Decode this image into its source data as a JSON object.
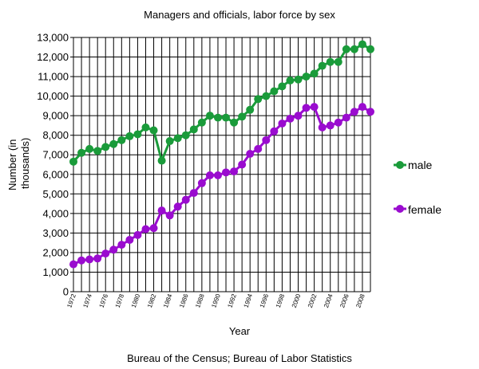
{
  "chart_data": {
    "type": "line",
    "title": "Managers and officials, labor force by sex",
    "xlabel": "Year",
    "ylabel": "Number (in thousands)",
    "ylabel_lines": [
      "Number (in",
      "thousands)"
    ],
    "source": "Bureau of the Census; Bureau of Labor Statistics",
    "xlim": [
      1972,
      2009
    ],
    "ylim": [
      0,
      13000
    ],
    "y_ticks": [
      0,
      1000,
      2000,
      3000,
      4000,
      5000,
      6000,
      7000,
      8000,
      9000,
      10000,
      11000,
      12000,
      13000
    ],
    "y_tick_labels": [
      "0",
      "1,000",
      "2,000",
      "3,000",
      "4,000",
      "5,000",
      "6,000",
      "7,000",
      "8,000",
      "9,000",
      "10,000",
      "11,000",
      "12,000",
      "13,000"
    ],
    "x_tick_labels": [
      "1972",
      "1974",
      "1976",
      "1978",
      "1980",
      "1982",
      "1984",
      "1986",
      "1988",
      "1990",
      "1992",
      "1994",
      "1996",
      "1998",
      "2000",
      "2002",
      "2004",
      "2006",
      "2008"
    ],
    "grid": true,
    "x": [
      1972,
      1973,
      1974,
      1975,
      1976,
      1977,
      1978,
      1979,
      1980,
      1981,
      1982,
      1983,
      1984,
      1985,
      1986,
      1987,
      1988,
      1989,
      1990,
      1991,
      1992,
      1993,
      1994,
      1995,
      1996,
      1997,
      1998,
      1999,
      2000,
      2001,
      2002,
      2003,
      2004,
      2005,
      2006,
      2007,
      2008,
      2009
    ],
    "series": [
      {
        "name": "male",
        "color": "#1a9b3a",
        "values": [
          6650,
          7100,
          7300,
          7200,
          7400,
          7550,
          7750,
          7950,
          8050,
          8400,
          8250,
          6700,
          7700,
          7850,
          8000,
          8300,
          8650,
          9000,
          8900,
          8900,
          8650,
          8950,
          9300,
          9850,
          10000,
          10250,
          10500,
          10800,
          10850,
          11000,
          11150,
          11550,
          11750,
          11750,
          12400,
          12400,
          12650,
          12400
        ]
      },
      {
        "name": "female",
        "color": "#9a0ccf",
        "values": [
          1400,
          1600,
          1650,
          1700,
          1950,
          2150,
          2400,
          2650,
          2900,
          3200,
          3250,
          4150,
          3900,
          4350,
          4700,
          5050,
          5550,
          5950,
          5950,
          6100,
          6150,
          6500,
          7050,
          7300,
          7750,
          8200,
          8600,
          8850,
          9000,
          9400,
          9450,
          8400,
          8500,
          8650,
          8900,
          9200,
          9450,
          9200
        ]
      }
    ]
  }
}
